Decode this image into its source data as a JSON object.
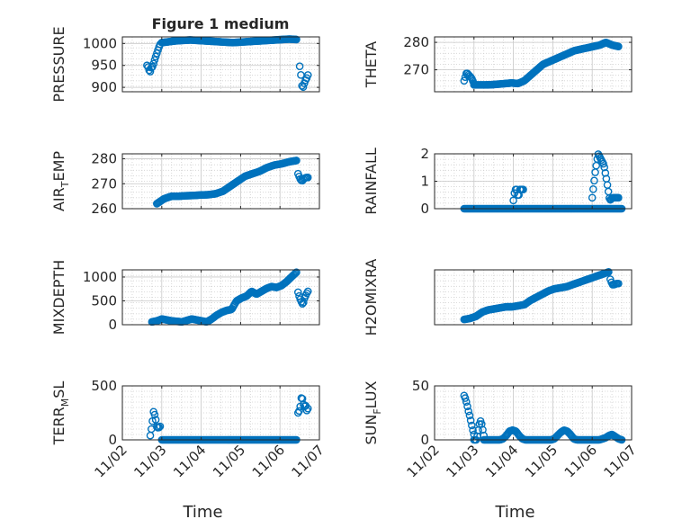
{
  "figure_title": "Figure 1 medium",
  "marker_color": "#0072bd",
  "chart_data": [
    {
      "type": "scatter",
      "ylabel": "PRESSURE",
      "xlim": [
        "11/02",
        "11/07"
      ],
      "ylim": [
        890,
        1015
      ],
      "yticks": [
        900,
        950,
        1000
      ],
      "xticks": [
        "11/02",
        "11/03",
        "11/04",
        "11/05",
        "11/06",
        "11/07"
      ],
      "show_xtick_labels": false,
      "grid": true,
      "segments": [
        {
          "x_start": "11/02 15:00",
          "x_end": "11/02 23:00",
          "y": [
            950,
            945,
            933,
            945,
            948,
            960,
            970,
            980,
            990,
            998
          ]
        },
        {
          "x_start": "11/03 00:00",
          "x_end": "11/06 10:00",
          "y": [
            1002,
            1004,
            1006,
            1007,
            1008,
            1007,
            1006,
            1005,
            1004,
            1003,
            1002,
            1003,
            1004,
            1005,
            1006,
            1007,
            1008,
            1009,
            1010,
            1009
          ]
        },
        {
          "x_start": "11/06 12:00",
          "x_end": "11/06 17:00",
          "y": [
            948,
            925,
            895,
            905,
            915,
            920,
            928
          ]
        }
      ]
    },
    {
      "type": "scatter",
      "ylabel": "THETA",
      "xlim": [
        "11/02",
        "11/07"
      ],
      "ylim": [
        262,
        282
      ],
      "yticks": [
        270,
        280
      ],
      "xticks": [
        "11/02",
        "11/03",
        "11/04",
        "11/05",
        "11/06",
        "11/07"
      ],
      "show_xtick_labels": false,
      "grid": true,
      "segments": [
        {
          "x_start": "11/02 18:00",
          "x_end": "11/03 00:00",
          "y": [
            266,
            269,
            268,
            267,
            265
          ]
        },
        {
          "x_start": "11/03 00:00",
          "x_end": "11/06 16:00",
          "y": [
            264.5,
            264.5,
            264.5,
            264.6,
            264.8,
            265,
            265.2,
            265,
            266,
            268,
            270,
            272,
            273,
            274,
            275,
            276,
            277,
            277.5,
            278,
            278.5,
            279,
            280,
            279,
            278.5
          ]
        }
      ]
    },
    {
      "type": "scatter",
      "ylabel": "AIR_TEMP",
      "xlim": [
        "11/02",
        "11/07"
      ],
      "ylim": [
        260,
        282
      ],
      "yticks": [
        260,
        270,
        280
      ],
      "xticks": [
        "11/02",
        "11/03",
        "11/04",
        "11/05",
        "11/06",
        "11/07"
      ],
      "show_xtick_labels": false,
      "grid": true,
      "segments": [
        {
          "x_start": "11/02 21:00",
          "x_end": "11/06 10:00",
          "y": [
            262,
            264,
            265,
            265,
            265.2,
            265.3,
            265.5,
            265.6,
            266,
            267,
            269,
            271,
            273,
            274,
            275,
            276.5,
            277.5,
            278,
            278.8,
            279.3
          ]
        },
        {
          "x_start": "11/06 11:00",
          "x_end": "11/06 17:00",
          "y": [
            274,
            272,
            271,
            272,
            272.5,
            272.5
          ]
        }
      ]
    },
    {
      "type": "scatter",
      "ylabel": "RAINFALL",
      "xlim": [
        "11/02",
        "11/07"
      ],
      "ylim": [
        0,
        2
      ],
      "yticks": [
        0,
        1,
        2
      ],
      "xticks": [
        "11/02",
        "11/03",
        "11/04",
        "11/05",
        "11/06",
        "11/07"
      ],
      "show_xtick_labels": false,
      "grid": true,
      "segments": [
        {
          "x_start": "11/02 18:00",
          "x_end": "11/06 18:00",
          "y": [
            0,
            0,
            0,
            0,
            0,
            0,
            0,
            0,
            0,
            0,
            0,
            0,
            0,
            0,
            0,
            0,
            0,
            0,
            0,
            0,
            0,
            0,
            0,
            0,
            0,
            0,
            0,
            0,
            0,
            0,
            0,
            0,
            0,
            0,
            0,
            0,
            0,
            0,
            0,
            0,
            0,
            0,
            0,
            0,
            0,
            0,
            0,
            0,
            0,
            0
          ]
        },
        {
          "x_start": "11/04 00:00",
          "x_end": "11/04 06:00",
          "y": [
            0.3,
            0.7,
            0.7,
            0.4,
            0.7,
            0.7,
            0.7
          ]
        },
        {
          "x_start": "11/06 00:00",
          "x_end": "11/06 16:00",
          "y": [
            0.4,
            1.3,
            2.0,
            1.8,
            1.6,
            1.0,
            0.3,
            0.4,
            0.4,
            0.4
          ]
        }
      ]
    },
    {
      "type": "scatter",
      "ylabel": "MIXDEPTH",
      "xlim": [
        "11/02",
        "11/07"
      ],
      "ylim": [
        0,
        1150
      ],
      "yticks": [
        0,
        500,
        1000
      ],
      "xticks": [
        "11/02",
        "11/03",
        "11/04",
        "11/05",
        "11/06",
        "11/07"
      ],
      "show_xtick_labels": false,
      "grid": true,
      "segments": [
        {
          "x_start": "11/02 18:00",
          "x_end": "11/06 10:00",
          "y": [
            60,
            80,
            120,
            100,
            80,
            70,
            60,
            90,
            120,
            100,
            80,
            60,
            120,
            200,
            260,
            300,
            320,
            500,
            560,
            600,
            700,
            640,
            700,
            760,
            800,
            780,
            820,
            900,
            1000,
            1100
          ]
        },
        {
          "x_start": "11/06 11:00",
          "x_end": "11/06 17:00",
          "y": [
            680,
            560,
            480,
            420,
            560,
            640,
            700
          ]
        }
      ]
    },
    {
      "type": "scatter",
      "ylabel": "H2OMIXRA",
      "xlim": [
        "11/02",
        "11/07"
      ],
      "ylim": [
        0,
        5.2
      ],
      "yticks": [],
      "xticks": [
        "11/02",
        "11/03",
        "11/04",
        "11/05",
        "11/06",
        "11/07"
      ],
      "show_xtick_labels": false,
      "grid": true,
      "segments": [
        {
          "x_start": "11/02 18:00",
          "x_end": "11/06 10:00",
          "y": [
            0.5,
            0.6,
            0.8,
            1.2,
            1.4,
            1.5,
            1.6,
            1.7,
            1.7,
            1.8,
            1.9,
            2.3,
            2.6,
            2.9,
            3.2,
            3.4,
            3.5,
            3.6,
            3.8,
            4.0,
            4.2,
            4.4,
            4.6,
            4.8,
            5.0
          ]
        },
        {
          "x_start": "11/06 11:00",
          "x_end": "11/06 16:00",
          "y": [
            4.3,
            3.8,
            3.8,
            3.9,
            3.9
          ]
        }
      ]
    },
    {
      "type": "scatter",
      "ylabel": "TERR_MSL",
      "xlim": [
        "11/02",
        "11/07"
      ],
      "ylim": [
        0,
        500
      ],
      "yticks": [
        0,
        500
      ],
      "xticks": [
        "11/02",
        "11/03",
        "11/04",
        "11/05",
        "11/06",
        "11/07"
      ],
      "show_xtick_labels": true,
      "grid": true,
      "segments": [
        {
          "x_start": "11/02 17:00",
          "x_end": "11/02 23:00",
          "y": [
            40,
            130,
            260,
            220,
            120,
            110,
            125
          ]
        },
        {
          "x_start": "11/03 00:00",
          "x_end": "11/06 10:00",
          "y": [
            0,
            0,
            0,
            0,
            0,
            0,
            0,
            0,
            0,
            0,
            0,
            0,
            0,
            0,
            0,
            0,
            0,
            0,
            0,
            0,
            0,
            0,
            0,
            0,
            0,
            0,
            0,
            0,
            0,
            0,
            0,
            0,
            0,
            0,
            0,
            0,
            0,
            0,
            0,
            0
          ]
        },
        {
          "x_start": "11/06 11:00",
          "x_end": "11/06 17:00",
          "y": [
            250,
            270,
            320,
            420,
            350,
            300,
            330,
            270,
            290
          ]
        }
      ],
      "xlabel": "Time"
    },
    {
      "type": "scatter",
      "ylabel": "SUN_FLUX",
      "xlim": [
        "11/02",
        "11/07"
      ],
      "ylim": [
        0,
        50
      ],
      "yticks": [
        0,
        50
      ],
      "xticks": [
        "11/02",
        "11/03",
        "11/04",
        "11/05",
        "11/06",
        "11/07"
      ],
      "show_xtick_labels": true,
      "grid": true,
      "segments": [
        {
          "x_start": "11/02 18:00",
          "x_end": "11/03 00:00",
          "y": [
            41,
            38,
            33,
            27,
            22,
            16,
            10,
            5
          ]
        },
        {
          "x_start": "11/03 00:00",
          "x_end": "11/03 06:00",
          "y": [
            0,
            0,
            0,
            5,
            12,
            18,
            16,
            10,
            4
          ]
        },
        {
          "x_start": "11/03 06:00",
          "x_end": "11/06 18:00",
          "y": [
            0,
            0,
            0,
            0,
            0,
            0,
            1,
            4,
            8,
            9,
            8,
            4,
            1,
            0,
            0,
            0,
            0,
            0,
            0,
            0,
            0,
            0,
            1,
            4,
            7,
            9,
            8,
            5,
            1,
            0,
            0,
            0,
            0,
            0,
            0,
            0,
            0,
            1,
            2,
            4,
            5,
            3,
            1,
            0
          ]
        }
      ],
      "xlabel": "Time"
    }
  ]
}
